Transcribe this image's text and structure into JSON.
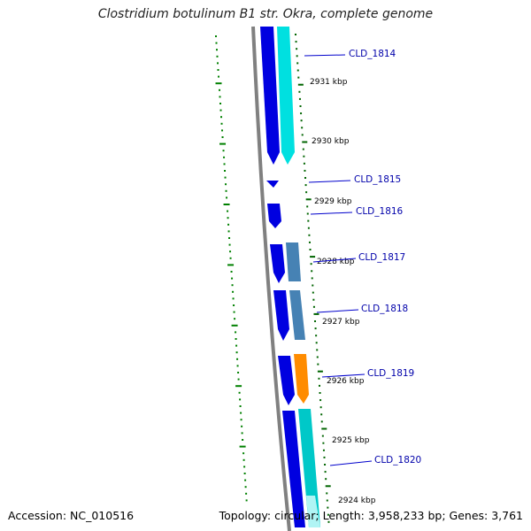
{
  "title": "Clostridium botulinum B1 str. Okra, complete genome",
  "accession_label": "Accession: NC_010516",
  "summary_label": "Topology: circular; Length: 3,958,233 bp; Genes: 3,761",
  "colors": {
    "backbone": "#808080",
    "cds_forward": "#0000e0",
    "feature_cyan": "#00e0e0",
    "feature_steel": "#4682b4",
    "feature_orange": "#ff8c00",
    "gc_dots": "#008000",
    "label_line": "#0000cc",
    "tick": "#006400"
  },
  "tick_labels": [
    {
      "text": "2931 kbp"
    },
    {
      "text": "2930 kbp"
    },
    {
      "text": "2929 kbp"
    },
    {
      "text": "2928 kbp"
    },
    {
      "text": "2927 kbp"
    },
    {
      "text": "2926 kbp"
    },
    {
      "text": "2925 kbp"
    },
    {
      "text": "2924 kbp"
    }
  ],
  "gene_labels": [
    {
      "text": "CLD_1814"
    },
    {
      "text": "CLD_1815"
    },
    {
      "text": "CLD_1816"
    },
    {
      "text": "CLD_1817"
    },
    {
      "text": "CLD_1818"
    },
    {
      "text": "CLD_1819"
    },
    {
      "text": "CLD_1820"
    }
  ]
}
